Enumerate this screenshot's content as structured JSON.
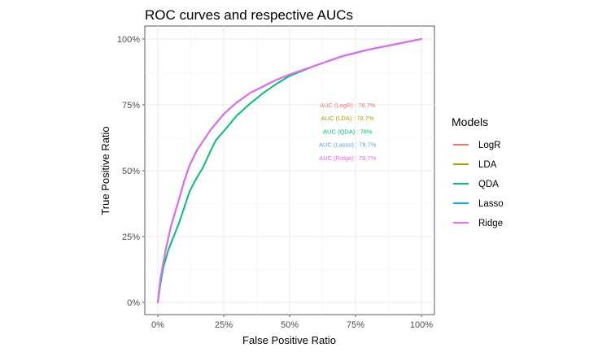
{
  "chart_data": {
    "type": "line",
    "title": "ROC curves and respective AUCs",
    "xlabel": "False Positive Ratio",
    "ylabel": "True Positive Ratio",
    "xlim": [
      0,
      1
    ],
    "ylim": [
      0,
      1
    ],
    "x_ticks": [
      {
        "value": 0,
        "label": "0%"
      },
      {
        "value": 0.25,
        "label": "25%"
      },
      {
        "value": 0.5,
        "label": "50%"
      },
      {
        "value": 0.75,
        "label": "75%"
      },
      {
        "value": 1,
        "label": "100%"
      }
    ],
    "y_ticks": [
      {
        "value": 0,
        "label": "0%"
      },
      {
        "value": 0.25,
        "label": "25%"
      },
      {
        "value": 0.5,
        "label": "50%"
      },
      {
        "value": 0.75,
        "label": "75%"
      },
      {
        "value": 1,
        "label": "100%"
      }
    ],
    "grid": true,
    "legend": {
      "title": "Models",
      "placement": "right"
    },
    "series": [
      {
        "name": "LogR",
        "color": "#F8766D",
        "x": [
          0,
          0.01,
          0.03,
          0.05,
          0.08,
          0.1,
          0.12,
          0.15,
          0.2,
          0.25,
          0.3,
          0.35,
          0.4,
          0.45,
          0.5,
          0.6,
          0.7,
          0.8,
          0.9,
          1.0
        ],
        "y": [
          0,
          0.09,
          0.2,
          0.29,
          0.39,
          0.46,
          0.52,
          0.58,
          0.655,
          0.715,
          0.76,
          0.795,
          0.82,
          0.845,
          0.865,
          0.9,
          0.935,
          0.96,
          0.98,
          1.0
        ]
      },
      {
        "name": "LDA",
        "color": "#A3A500",
        "x": [
          0,
          0.01,
          0.03,
          0.05,
          0.08,
          0.1,
          0.12,
          0.15,
          0.2,
          0.25,
          0.3,
          0.35,
          0.4,
          0.45,
          0.5,
          0.6,
          0.7,
          0.8,
          0.9,
          1.0
        ],
        "y": [
          0,
          0.09,
          0.2,
          0.29,
          0.39,
          0.46,
          0.52,
          0.58,
          0.655,
          0.715,
          0.76,
          0.795,
          0.82,
          0.845,
          0.865,
          0.9,
          0.935,
          0.96,
          0.98,
          1.0
        ]
      },
      {
        "name": "QDA",
        "color": "#00BF7D",
        "x": [
          0,
          0.01,
          0.02,
          0.04,
          0.06,
          0.08,
          0.1,
          0.12,
          0.14,
          0.17,
          0.2,
          0.22,
          0.25,
          0.3,
          0.35,
          0.4,
          0.45,
          0.5,
          0.6,
          0.7,
          0.8,
          0.9,
          1.0
        ],
        "y": [
          0,
          0.07,
          0.13,
          0.2,
          0.25,
          0.3,
          0.36,
          0.42,
          0.46,
          0.51,
          0.575,
          0.615,
          0.65,
          0.71,
          0.755,
          0.795,
          0.83,
          0.86,
          0.9,
          0.935,
          0.96,
          0.98,
          1.0
        ]
      },
      {
        "name": "Lasso",
        "color": "#00B0F6",
        "x": [
          0,
          0.01,
          0.03,
          0.05,
          0.08,
          0.1,
          0.12,
          0.15,
          0.2,
          0.25,
          0.3,
          0.35,
          0.4,
          0.45,
          0.5,
          0.6,
          0.7,
          0.8,
          0.9,
          1.0
        ],
        "y": [
          0,
          0.09,
          0.2,
          0.29,
          0.39,
          0.46,
          0.52,
          0.58,
          0.655,
          0.715,
          0.76,
          0.795,
          0.82,
          0.845,
          0.865,
          0.9,
          0.935,
          0.96,
          0.98,
          1.0
        ]
      },
      {
        "name": "Ridge",
        "color": "#E76BF3",
        "x": [
          0,
          0.01,
          0.03,
          0.05,
          0.08,
          0.1,
          0.12,
          0.15,
          0.2,
          0.25,
          0.3,
          0.35,
          0.4,
          0.45,
          0.5,
          0.6,
          0.7,
          0.8,
          0.9,
          1.0
        ],
        "y": [
          0,
          0.09,
          0.2,
          0.29,
          0.39,
          0.46,
          0.52,
          0.58,
          0.655,
          0.715,
          0.76,
          0.795,
          0.82,
          0.845,
          0.865,
          0.9,
          0.935,
          0.96,
          0.98,
          1.0
        ]
      }
    ],
    "annotations": [
      {
        "text": "AUC (LogR) :  78.7%",
        "color": "#F8766D",
        "x": 0.72,
        "y": 0.75
      },
      {
        "text": "AUC (LDA) :  78.7%",
        "color": "#A3A500",
        "x": 0.72,
        "y": 0.7
      },
      {
        "text": "AUC (QDA) :  78%",
        "color": "#00BF7D",
        "x": 0.72,
        "y": 0.65
      },
      {
        "text": "AUC (Lasso) :  78.7%",
        "color": "#619CFF",
        "x": 0.72,
        "y": 0.6
      },
      {
        "text": "AUC (Ridge) :  78.7%",
        "color": "#E76BF3",
        "x": 0.72,
        "y": 0.55
      }
    ]
  }
}
